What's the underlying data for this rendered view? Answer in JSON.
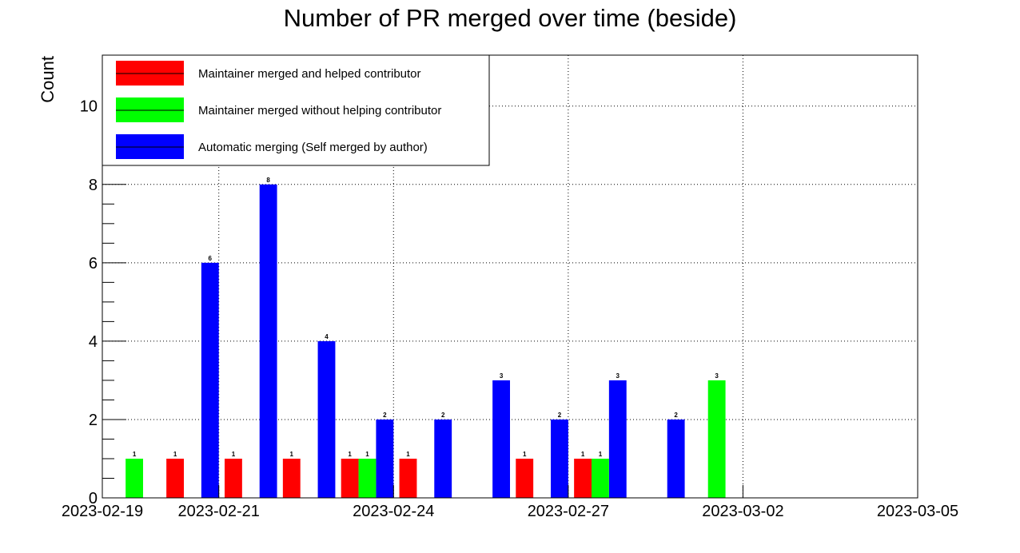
{
  "chart_data": {
    "type": "bar",
    "title": "Number of PR merged over time (beside)",
    "xlabel": "",
    "ylabel": "Count",
    "xlim": [
      "2023-02-19",
      "2023-03-05"
    ],
    "ylim": [
      0,
      11.3
    ],
    "y_ticks": [
      0,
      2,
      4,
      6,
      8,
      10
    ],
    "x_ticks": [
      "2023-02-19",
      "2023-02-21",
      "2023-02-24",
      "2023-02-27",
      "2023-03-02",
      "2023-03-05"
    ],
    "grid": true,
    "legend_position": "top-left",
    "series": [
      {
        "name": "Maintainer merged and helped contributor",
        "color": "#ff0000"
      },
      {
        "name": "Maintainer merged without helping contributor",
        "color": "#00ff00"
      },
      {
        "name": "Automatic merging (Self merged by author)",
        "color": "#0000ff"
      }
    ],
    "bars": [
      {
        "series": 1,
        "date": "2023-02-19",
        "value": 1
      },
      {
        "series": 2,
        "date": "2023-02-20",
        "value": 6
      },
      {
        "series": 0,
        "date": "2023-02-20",
        "value": 1
      },
      {
        "series": 2,
        "date": "2023-02-21",
        "value": 8
      },
      {
        "series": 0,
        "date": "2023-02-21",
        "value": 1
      },
      {
        "series": 2,
        "date": "2023-02-22",
        "value": 4
      },
      {
        "series": 0,
        "date": "2023-02-22",
        "value": 1
      },
      {
        "series": 2,
        "date": "2023-02-23",
        "value": 2
      },
      {
        "series": 0,
        "date": "2023-02-23",
        "value": 1
      },
      {
        "series": 1,
        "date": "2023-02-23",
        "value": 1
      },
      {
        "series": 2,
        "date": "2023-02-24",
        "value": 2
      },
      {
        "series": 0,
        "date": "2023-02-24",
        "value": 1
      },
      {
        "series": 2,
        "date": "2023-02-25",
        "value": 3
      },
      {
        "series": 2,
        "date": "2023-02-26",
        "value": 2
      },
      {
        "series": 0,
        "date": "2023-02-26",
        "value": 1
      },
      {
        "series": 2,
        "date": "2023-02-27",
        "value": 3
      },
      {
        "series": 0,
        "date": "2023-02-27",
        "value": 1
      },
      {
        "series": 1,
        "date": "2023-02-27",
        "value": 1
      },
      {
        "series": 2,
        "date": "2023-02-28",
        "value": 2
      },
      {
        "series": 1,
        "date": "2023-03-01",
        "value": 3
      }
    ]
  }
}
